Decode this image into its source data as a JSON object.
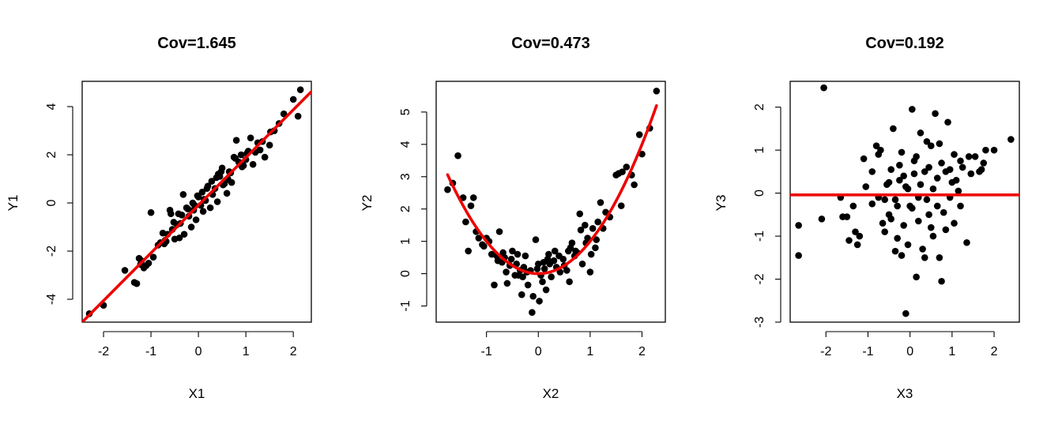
{
  "chart_data": [
    {
      "type": "scatter",
      "title": "Cov=1.645",
      "xlabel": "X1",
      "ylabel": "Y1",
      "xlim": [
        -2.45,
        2.38
      ],
      "ylim": [
        -4.95,
        5.05
      ],
      "xticks": [
        -2,
        -1,
        0,
        1,
        2
      ],
      "yticks": [
        -4,
        -2,
        0,
        2,
        4
      ],
      "point_color": "#000000",
      "fit_color": "#ee0000",
      "fit": {
        "kind": "linear",
        "x": [
          -2.45,
          2.38
        ],
        "y": [
          -4.95,
          4.62
        ]
      },
      "points": [
        [
          -2.3,
          -4.6
        ],
        [
          -2.0,
          -4.25
        ],
        [
          -1.55,
          -2.8
        ],
        [
          -1.35,
          -3.3
        ],
        [
          -1.3,
          -3.35
        ],
        [
          -1.25,
          -2.3
        ],
        [
          -1.2,
          -2.4
        ],
        [
          -1.15,
          -2.7
        ],
        [
          -1.1,
          -2.6
        ],
        [
          -1.05,
          -2.5
        ],
        [
          -1.0,
          -0.4
        ],
        [
          -0.95,
          -2.25
        ],
        [
          -0.8,
          -1.65
        ],
        [
          -0.75,
          -1.25
        ],
        [
          -0.7,
          -1.55
        ],
        [
          -0.65,
          -1.3
        ],
        [
          -0.6,
          -0.3
        ],
        [
          -0.55,
          -1.1
        ],
        [
          -0.5,
          -1.5
        ],
        [
          -0.45,
          -0.9
        ],
        [
          -0.4,
          -1.45
        ],
        [
          -0.35,
          -0.5
        ],
        [
          -0.3,
          -1.3
        ],
        [
          -0.25,
          -0.2
        ],
        [
          -0.2,
          -0.55
        ],
        [
          -0.15,
          -1.0
        ],
        [
          -0.1,
          -0.3
        ],
        [
          -0.05,
          -0.7
        ],
        [
          0.0,
          0.25
        ],
        [
          0.05,
          -0.1
        ],
        [
          0.1,
          -0.35
        ],
        [
          0.15,
          0.1
        ],
        [
          0.2,
          0.7
        ],
        [
          0.25,
          -0.2
        ],
        [
          0.3,
          0.35
        ],
        [
          0.35,
          0.6
        ],
        [
          0.4,
          0.05
        ],
        [
          0.45,
          1.1
        ],
        [
          0.5,
          1.45
        ],
        [
          0.55,
          0.8
        ],
        [
          0.6,
          0.4
        ],
        [
          0.65,
          1.3
        ],
        [
          0.7,
          0.85
        ],
        [
          0.75,
          1.9
        ],
        [
          0.8,
          2.6
        ],
        [
          0.85,
          1.7
        ],
        [
          0.9,
          2.0
        ],
        [
          0.95,
          1.55
        ],
        [
          1.0,
          1.8
        ],
        [
          1.05,
          2.15
        ],
        [
          1.1,
          2.7
        ],
        [
          1.15,
          1.6
        ],
        [
          1.2,
          2.1
        ],
        [
          1.25,
          2.5
        ],
        [
          1.3,
          2.2
        ],
        [
          1.4,
          1.9
        ],
        [
          1.5,
          2.4
        ],
        [
          1.6,
          3.0
        ],
        [
          1.7,
          3.3
        ],
        [
          1.8,
          3.7
        ],
        [
          2.0,
          4.3
        ],
        [
          2.1,
          3.6
        ],
        [
          2.15,
          4.7
        ],
        [
          -0.85,
          -1.75
        ],
        [
          -0.68,
          -1.6
        ],
        [
          -0.52,
          -0.8
        ],
        [
          -0.42,
          -0.45
        ],
        [
          -0.32,
          0.35
        ],
        [
          -0.22,
          -0.25
        ],
        [
          -0.12,
          0.0
        ],
        [
          -0.02,
          0.3
        ],
        [
          0.08,
          0.45
        ],
        [
          0.18,
          0.6
        ],
        [
          0.28,
          0.9
        ],
        [
          0.38,
          1.05
        ],
        [
          0.48,
          1.3
        ],
        [
          0.58,
          0.95
        ],
        [
          0.68,
          1.25
        ],
        [
          0.78,
          1.85
        ],
        [
          0.92,
          1.5
        ],
        [
          1.02,
          2.05
        ],
        [
          -1.22,
          -2.55
        ],
        [
          -0.58,
          -0.45
        ],
        [
          -0.08,
          -0.1
        ],
        [
          0.42,
          1.2
        ],
        [
          0.88,
          1.6
        ],
        [
          1.35,
          2.55
        ],
        [
          1.52,
          2.95
        ],
        [
          -0.38,
          -0.85
        ],
        [
          0.12,
          0.15
        ],
        [
          0.62,
          1.0
        ],
        [
          -0.72,
          -1.7
        ],
        [
          0.52,
          0.75
        ]
      ]
    },
    {
      "type": "scatter",
      "title": "Cov=0.473",
      "xlabel": "X2",
      "ylabel": "Y2",
      "xlim": [
        -1.97,
        2.45
      ],
      "ylim": [
        -1.5,
        5.95
      ],
      "xticks": [
        -1,
        0,
        1,
        2
      ],
      "yticks": [
        -1,
        0,
        1,
        2,
        3,
        4,
        5
      ],
      "point_color": "#000000",
      "fit_color": "#ee0000",
      "fit": {
        "kind": "quadratic",
        "x_range": [
          -1.75,
          2.28
        ],
        "vertex": [
          0.0,
          0.0
        ],
        "a": 1.0
      },
      "points": [
        [
          -1.75,
          2.6
        ],
        [
          -1.65,
          2.8
        ],
        [
          -1.55,
          3.65
        ],
        [
          -1.45,
          2.35
        ],
        [
          -1.4,
          1.6
        ],
        [
          -1.35,
          0.7
        ],
        [
          -1.3,
          2.1
        ],
        [
          -1.25,
          2.35
        ],
        [
          -1.2,
          1.3
        ],
        [
          -1.15,
          1.1
        ],
        [
          -1.05,
          0.85
        ],
        [
          -1.0,
          1.1
        ],
        [
          -0.95,
          1.0
        ],
        [
          -0.9,
          0.6
        ],
        [
          -0.85,
          -0.35
        ],
        [
          -0.8,
          0.55
        ],
        [
          -0.75,
          1.3
        ],
        [
          -0.7,
          0.35
        ],
        [
          -0.65,
          0.5
        ],
        [
          -0.6,
          -0.3
        ],
        [
          -0.55,
          0.25
        ],
        [
          -0.5,
          0.7
        ],
        [
          -0.45,
          -0.05
        ],
        [
          -0.4,
          0.6
        ],
        [
          -0.35,
          0.1
        ],
        [
          -0.3,
          -0.1
        ],
        [
          -0.25,
          0.55
        ],
        [
          -0.2,
          -0.35
        ],
        [
          -0.15,
          0.1
        ],
        [
          -0.1,
          -0.7
        ],
        [
          -0.05,
          1.05
        ],
        [
          0.0,
          0.3
        ],
        [
          0.05,
          -0.05
        ],
        [
          0.1,
          0.35
        ],
        [
          0.15,
          -0.5
        ],
        [
          0.2,
          0.6
        ],
        [
          0.25,
          -0.1
        ],
        [
          0.3,
          0.4
        ],
        [
          0.35,
          0.2
        ],
        [
          0.4,
          0.55
        ],
        [
          0.5,
          0.25
        ],
        [
          0.55,
          0.1
        ],
        [
          0.6,
          -0.25
        ],
        [
          0.65,
          0.95
        ],
        [
          0.7,
          0.55
        ],
        [
          0.75,
          0.65
        ],
        [
          0.8,
          1.85
        ],
        [
          0.85,
          0.3
        ],
        [
          0.9,
          1.5
        ],
        [
          0.95,
          1.1
        ],
        [
          1.0,
          0.05
        ],
        [
          1.05,
          1.4
        ],
        [
          1.1,
          0.8
        ],
        [
          1.15,
          1.6
        ],
        [
          1.2,
          2.2
        ],
        [
          1.25,
          1.4
        ],
        [
          1.3,
          1.9
        ],
        [
          1.5,
          3.05
        ],
        [
          1.55,
          3.1
        ],
        [
          1.6,
          2.1
        ],
        [
          1.7,
          3.3
        ],
        [
          1.8,
          3.05
        ],
        [
          1.85,
          2.75
        ],
        [
          1.95,
          4.3
        ],
        [
          2.0,
          3.7
        ],
        [
          2.15,
          4.5
        ],
        [
          2.28,
          5.65
        ],
        [
          -0.12,
          -1.2
        ],
        [
          0.02,
          -0.85
        ],
        [
          -0.32,
          -0.65
        ],
        [
          -0.62,
          0.05
        ],
        [
          -0.52,
          0.45
        ],
        [
          -0.02,
          0.15
        ],
        [
          0.22,
          0.3
        ],
        [
          0.42,
          0.05
        ],
        [
          0.58,
          0.7
        ],
        [
          0.92,
          0.95
        ],
        [
          1.12,
          1.05
        ],
        [
          -1.08,
          0.9
        ],
        [
          -0.78,
          0.4
        ],
        [
          -0.42,
          0.3
        ],
        [
          -0.22,
          0.05
        ],
        [
          0.12,
          0.15
        ],
        [
          0.32,
          0.7
        ],
        [
          0.72,
          0.7
        ],
        [
          1.02,
          0.6
        ],
        [
          1.38,
          1.75
        ],
        [
          1.62,
          3.15
        ],
        [
          -0.38,
          -0.05
        ],
        [
          0.08,
          -0.25
        ],
        [
          0.48,
          0.45
        ],
        [
          0.82,
          1.35
        ],
        [
          -0.68,
          0.65
        ],
        [
          0.18,
          0.45
        ],
        [
          -0.28,
          0.2
        ],
        [
          0.62,
          0.8
        ]
      ]
    },
    {
      "type": "scatter",
      "title": "Cov=0.192",
      "xlabel": "X3",
      "ylabel": "Y3",
      "xlim": [
        -2.85,
        2.6
      ],
      "ylim": [
        -3.0,
        2.6
      ],
      "xticks": [
        -2,
        -1,
        0,
        1,
        2
      ],
      "yticks": [
        -3,
        -2,
        -1,
        0,
        1,
        2
      ],
      "point_color": "#000000",
      "fit_color": "#ee0000",
      "fit": {
        "kind": "horizontal",
        "y": -0.04
      },
      "points": [
        [
          -2.65,
          -0.75
        ],
        [
          -2.65,
          -1.45
        ],
        [
          -2.05,
          2.45
        ],
        [
          -2.1,
          -0.6
        ],
        [
          -1.65,
          -0.1
        ],
        [
          -1.6,
          -0.55
        ],
        [
          -1.5,
          -0.55
        ],
        [
          -1.45,
          -1.1
        ],
        [
          -1.35,
          -0.3
        ],
        [
          -1.3,
          -0.9
        ],
        [
          -1.25,
          -1.2
        ],
        [
          -1.2,
          -1.0
        ],
        [
          -1.1,
          0.8
        ],
        [
          -1.05,
          0.15
        ],
        [
          -0.9,
          0.5
        ],
        [
          -0.8,
          1.1
        ],
        [
          -0.75,
          0.9
        ],
        [
          -0.7,
          1.0
        ],
        [
          -0.65,
          -0.7
        ],
        [
          -0.6,
          -0.15
        ],
        [
          -0.55,
          0.2
        ],
        [
          -0.5,
          -0.5
        ],
        [
          -0.45,
          0.55
        ],
        [
          -0.4,
          1.5
        ],
        [
          -0.35,
          -1.35
        ],
        [
          -0.3,
          -0.3
        ],
        [
          -0.25,
          0.3
        ],
        [
          -0.2,
          0.95
        ],
        [
          -0.15,
          -0.75
        ],
        [
          -0.1,
          0.15
        ],
        [
          -0.05,
          -1.2
        ],
        [
          0.0,
          -0.3
        ],
        [
          0.05,
          1.95
        ],
        [
          0.1,
          0.45
        ],
        [
          0.15,
          0.85
        ],
        [
          0.2,
          -0.1
        ],
        [
          0.25,
          1.4
        ],
        [
          0.3,
          -1.3
        ],
        [
          0.35,
          0.5
        ],
        [
          0.4,
          1.2
        ],
        [
          0.45,
          -0.5
        ],
        [
          0.5,
          1.1
        ],
        [
          0.55,
          -1.0
        ],
        [
          0.6,
          1.85
        ],
        [
          0.65,
          -0.3
        ],
        [
          0.7,
          -1.5
        ],
        [
          0.75,
          0.7
        ],
        [
          0.8,
          -0.45
        ],
        [
          0.85,
          -0.85
        ],
        [
          0.9,
          1.65
        ],
        [
          0.95,
          -0.1
        ],
        [
          1.0,
          0.25
        ],
        [
          1.05,
          -0.7
        ],
        [
          1.1,
          0.3
        ],
        [
          1.15,
          0.05
        ],
        [
          1.2,
          -0.3
        ],
        [
          1.25,
          0.6
        ],
        [
          1.35,
          -1.15
        ],
        [
          1.4,
          0.85
        ],
        [
          1.45,
          0.45
        ],
        [
          1.55,
          0.85
        ],
        [
          1.65,
          0.5
        ],
        [
          1.75,
          0.7
        ],
        [
          1.8,
          1.0
        ],
        [
          2.0,
          1.0
        ],
        [
          2.4,
          1.25
        ],
        [
          -0.1,
          -2.8
        ],
        [
          0.15,
          -1.95
        ],
        [
          0.75,
          -2.05
        ],
        [
          -0.6,
          -0.9
        ],
        [
          -0.45,
          -0.6
        ],
        [
          -0.25,
          0.65
        ],
        [
          -0.05,
          0.1
        ],
        [
          0.2,
          -0.65
        ],
        [
          0.45,
          0.6
        ],
        [
          0.65,
          0.35
        ],
        [
          0.95,
          0.55
        ],
        [
          -0.35,
          -0.15
        ],
        [
          0.1,
          0.75
        ],
        [
          -0.2,
          -1.45
        ],
        [
          0.35,
          -1.5
        ],
        [
          0.5,
          -0.8
        ],
        [
          -0.75,
          -0.1
        ],
        [
          0.85,
          0.5
        ],
        [
          -0.5,
          0.25
        ],
        [
          0.25,
          0.2
        ],
        [
          0.55,
          0.1
        ],
        [
          -0.15,
          0.4
        ],
        [
          1.2,
          0.75
        ],
        [
          0.7,
          1.15
        ],
        [
          0.4,
          -0.15
        ],
        [
          -0.3,
          -1.05
        ],
        [
          0.05,
          -0.35
        ],
        [
          -0.9,
          -0.25
        ],
        [
          1.05,
          0.9
        ],
        [
          1.7,
          0.55
        ]
      ]
    }
  ]
}
